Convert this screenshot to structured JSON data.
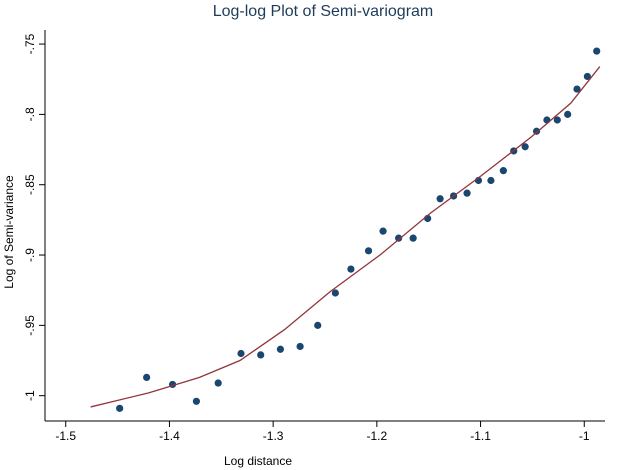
{
  "chart_data": {
    "type": "scatter",
    "title": "Log-log Plot of Semi-variogram",
    "x_label": "Log distance",
    "y_label": "Log of Semi-variance",
    "xlim": [
      -1.52,
      -0.98
    ],
    "ylim": [
      -1.018,
      -0.74
    ],
    "xticks": [
      -1.5,
      -1.4,
      -1.3,
      -1.2,
      -1.1,
      -1
    ],
    "yticks": [
      {
        "value": -1,
        "label": "-1"
      },
      {
        "value": -0.95,
        "label": "-.95"
      },
      {
        "value": -0.9,
        "label": "-.9"
      },
      {
        "value": -0.85,
        "label": "-.85"
      },
      {
        "value": -0.8,
        "label": "-.8"
      },
      {
        "value": -0.75,
        "label": "-.75"
      }
    ],
    "series": [
      {
        "type": "scatter",
        "color": "#1a476f",
        "x": [
          -1.448,
          -1.422,
          -1.397,
          -1.374,
          -1.353,
          -1.331,
          -1.312,
          -1.293,
          -1.274,
          -1.257,
          -1.24,
          -1.225,
          -1.208,
          -1.194,
          -1.179,
          -1.165,
          -1.151,
          -1.139,
          -1.126,
          -1.113,
          -1.102,
          -1.09,
          -1.078,
          -1.068,
          -1.057,
          -1.046,
          -1.036,
          -1.026,
          -1.016,
          -1.007,
          -0.997,
          -0.988
        ],
        "values": [
          -1.009,
          -0.987,
          -0.992,
          -1.004,
          -0.991,
          -0.97,
          -0.971,
          -0.967,
          -0.965,
          -0.95,
          -0.927,
          -0.91,
          -0.897,
          -0.883,
          -0.888,
          -0.888,
          -0.874,
          -0.86,
          -0.858,
          -0.856,
          -0.847,
          -0.847,
          -0.84,
          -0.826,
          -0.823,
          -0.812,
          -0.804,
          -0.804,
          -0.8,
          -0.782,
          -0.773,
          -0.755
        ]
      },
      {
        "type": "line",
        "color": "#90353b",
        "x": [
          -1.476,
          -1.42,
          -1.371,
          -1.332,
          -1.289,
          -1.245,
          -1.197,
          -1.148,
          -1.1,
          -1.051,
          -1.013,
          -0.985
        ],
        "values": [
          -1.008,
          -0.998,
          -0.987,
          -0.975,
          -0.953,
          -0.926,
          -0.9,
          -0.87,
          -0.844,
          -0.816,
          -0.792,
          -0.766
        ]
      }
    ]
  }
}
